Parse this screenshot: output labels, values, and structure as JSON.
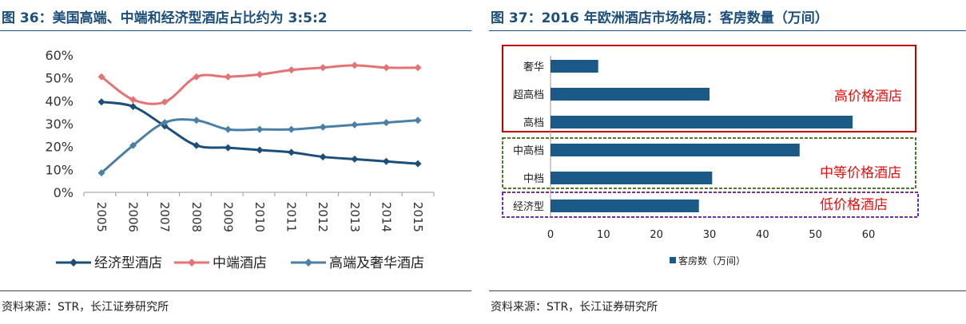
{
  "left": {
    "title": "图 36：美国高端、中端和经济型酒店占比约为 3:5:2",
    "source": "资料来源：STR，长江证券研究所"
  },
  "right": {
    "title": "图 37：2016 年欧洲酒店市场格局：客房数量（万间）",
    "source": "资料来源：STR，长江证券研究所",
    "groups": [
      {
        "label": "高价格酒店",
        "border_color": "#c00000"
      },
      {
        "label": "中等价格酒店",
        "border_color": "#4e7a2c"
      },
      {
        "label": "低价格酒店",
        "border_color": "#7030a0"
      }
    ],
    "group_label_color": "#e01010"
  },
  "chart_data": [
    {
      "type": "line",
      "title": "美国高端、中端和经济型酒店占比约为 3:5:2",
      "x": [
        "2005",
        "2006",
        "2007",
        "2008",
        "2009",
        "2010",
        "2011",
        "2012",
        "2013",
        "2014",
        "2015"
      ],
      "ylim": [
        0,
        60
      ],
      "yticks": [
        "0%",
        "10%",
        "20%",
        "30%",
        "40%",
        "50%",
        "60%"
      ],
      "grid": false,
      "legend_position": "bottom",
      "series": [
        {
          "name": "经济型酒店",
          "color": "#1b4f7a",
          "values": [
            39.5,
            37.5,
            29,
            20.5,
            19.5,
            18.5,
            17.5,
            15.5,
            14.5,
            13.5,
            12.5
          ]
        },
        {
          "name": "中端酒店",
          "color": "#e57373",
          "values": [
            50.5,
            40.5,
            39.5,
            50.5,
            50.5,
            51.5,
            53.5,
            54.5,
            55.5,
            54.5,
            54.5
          ]
        },
        {
          "name": "高端及奢华酒店",
          "color": "#4a7fa6",
          "values": [
            8.5,
            20.5,
            30.5,
            31.5,
            27.5,
            27.5,
            27.5,
            28.5,
            29.5,
            30.5,
            31.5
          ]
        }
      ]
    },
    {
      "type": "bar",
      "orientation": "horizontal",
      "title": "2016 年欧洲酒店市场格局：客房数量（万间）",
      "categories": [
        "奢华",
        "超高档",
        "高档",
        "中高档",
        "中档",
        "经济型"
      ],
      "values": [
        9,
        30,
        57,
        47,
        30.5,
        28
      ],
      "xlim": [
        0,
        60
      ],
      "xticks": [
        "0",
        "10",
        "20",
        "30",
        "40",
        "50",
        "60"
      ],
      "series_name": "客房数（万间）",
      "color": "#1b5a86",
      "legend_position": "bottom"
    }
  ]
}
